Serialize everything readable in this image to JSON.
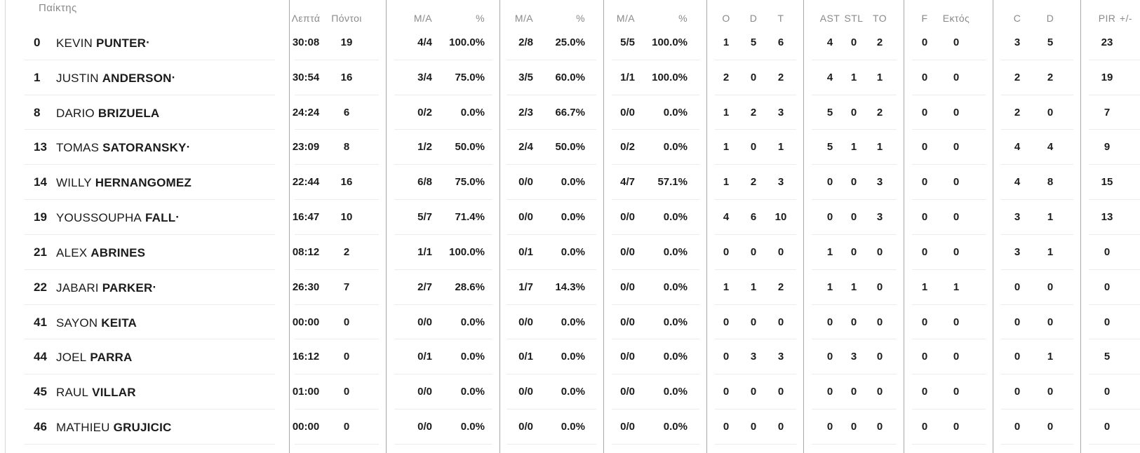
{
  "colors": {
    "header_text": "#8a8a8a",
    "data_text": "#1b1b1b",
    "column_divider": "#a9a9a9",
    "row_separator": "#ececec",
    "background": "#ffffff"
  },
  "table": {
    "starter_marker": "·",
    "headers": {
      "player": "Παίκτης",
      "min": "Λεπτά",
      "pts": "Πόντοι",
      "ma": "M/A",
      "pct": "%",
      "reb_o": "O",
      "reb_d": "D",
      "reb_t": "T",
      "ast": "AST",
      "stl": "STL",
      "to": "TO",
      "f": "F",
      "ektos": "Εκτός",
      "c": "C",
      "d": "D",
      "pir": "PIR",
      "plus_minus": "+/-"
    },
    "rows": [
      {
        "num": "0",
        "first": "KEVIN",
        "last": "PUNTER",
        "starter": true,
        "min": "30:08",
        "pts": "19",
        "fg2_ma": "4/4",
        "fg2_pct": "100.0%",
        "fg3_ma": "2/8",
        "fg3_pct": "25.0%",
        "ft_ma": "5/5",
        "ft_pct": "100.0%",
        "reb_o": "1",
        "reb_d": "5",
        "reb_t": "6",
        "ast": "4",
        "stl": "0",
        "to": "2",
        "f": "0",
        "ektos": "0",
        "c": "3",
        "d": "5",
        "pir": "23"
      },
      {
        "num": "1",
        "first": "JUSTIN",
        "last": "ANDERSON",
        "starter": true,
        "min": "30:54",
        "pts": "16",
        "fg2_ma": "3/4",
        "fg2_pct": "75.0%",
        "fg3_ma": "3/5",
        "fg3_pct": "60.0%",
        "ft_ma": "1/1",
        "ft_pct": "100.0%",
        "reb_o": "2",
        "reb_d": "0",
        "reb_t": "2",
        "ast": "4",
        "stl": "1",
        "to": "1",
        "f": "0",
        "ektos": "0",
        "c": "2",
        "d": "2",
        "pir": "19"
      },
      {
        "num": "8",
        "first": "DARIO",
        "last": "BRIZUELA",
        "starter": false,
        "min": "24:24",
        "pts": "6",
        "fg2_ma": "0/2",
        "fg2_pct": "0.0%",
        "fg3_ma": "2/3",
        "fg3_pct": "66.7%",
        "ft_ma": "0/0",
        "ft_pct": "0.0%",
        "reb_o": "1",
        "reb_d": "2",
        "reb_t": "3",
        "ast": "5",
        "stl": "0",
        "to": "2",
        "f": "0",
        "ektos": "0",
        "c": "2",
        "d": "0",
        "pir": "7"
      },
      {
        "num": "13",
        "first": "TOMAS",
        "last": "SATORANSKY",
        "starter": true,
        "min": "23:09",
        "pts": "8",
        "fg2_ma": "1/2",
        "fg2_pct": "50.0%",
        "fg3_ma": "2/4",
        "fg3_pct": "50.0%",
        "ft_ma": "0/2",
        "ft_pct": "0.0%",
        "reb_o": "1",
        "reb_d": "0",
        "reb_t": "1",
        "ast": "5",
        "stl": "1",
        "to": "1",
        "f": "0",
        "ektos": "0",
        "c": "4",
        "d": "4",
        "pir": "9"
      },
      {
        "num": "14",
        "first": "WILLY",
        "last": "HERNANGOMEZ",
        "starter": false,
        "min": "22:44",
        "pts": "16",
        "fg2_ma": "6/8",
        "fg2_pct": "75.0%",
        "fg3_ma": "0/0",
        "fg3_pct": "0.0%",
        "ft_ma": "4/7",
        "ft_pct": "57.1%",
        "reb_o": "1",
        "reb_d": "2",
        "reb_t": "3",
        "ast": "0",
        "stl": "0",
        "to": "3",
        "f": "0",
        "ektos": "0",
        "c": "4",
        "d": "8",
        "pir": "15"
      },
      {
        "num": "19",
        "first": "YOUSSOUPHA",
        "last": "FALL",
        "starter": true,
        "min": "16:47",
        "pts": "10",
        "fg2_ma": "5/7",
        "fg2_pct": "71.4%",
        "fg3_ma": "0/0",
        "fg3_pct": "0.0%",
        "ft_ma": "0/0",
        "ft_pct": "0.0%",
        "reb_o": "4",
        "reb_d": "6",
        "reb_t": "10",
        "ast": "0",
        "stl": "0",
        "to": "3",
        "f": "0",
        "ektos": "0",
        "c": "3",
        "d": "1",
        "pir": "13"
      },
      {
        "num": "21",
        "first": "ALEX",
        "last": "ABRINES",
        "starter": false,
        "min": "08:12",
        "pts": "2",
        "fg2_ma": "1/1",
        "fg2_pct": "100.0%",
        "fg3_ma": "0/1",
        "fg3_pct": "0.0%",
        "ft_ma": "0/0",
        "ft_pct": "0.0%",
        "reb_o": "0",
        "reb_d": "0",
        "reb_t": "0",
        "ast": "1",
        "stl": "0",
        "to": "0",
        "f": "0",
        "ektos": "0",
        "c": "3",
        "d": "1",
        "pir": "0"
      },
      {
        "num": "22",
        "first": "JABARI",
        "last": "PARKER",
        "starter": true,
        "min": "26:30",
        "pts": "7",
        "fg2_ma": "2/7",
        "fg2_pct": "28.6%",
        "fg3_ma": "1/7",
        "fg3_pct": "14.3%",
        "ft_ma": "0/0",
        "ft_pct": "0.0%",
        "reb_o": "1",
        "reb_d": "1",
        "reb_t": "2",
        "ast": "1",
        "stl": "1",
        "to": "0",
        "f": "1",
        "ektos": "1",
        "c": "0",
        "d": "0",
        "pir": "0"
      },
      {
        "num": "41",
        "first": "SAYON",
        "last": "KEITA",
        "starter": false,
        "min": "00:00",
        "pts": "0",
        "fg2_ma": "0/0",
        "fg2_pct": "0.0%",
        "fg3_ma": "0/0",
        "fg3_pct": "0.0%",
        "ft_ma": "0/0",
        "ft_pct": "0.0%",
        "reb_o": "0",
        "reb_d": "0",
        "reb_t": "0",
        "ast": "0",
        "stl": "0",
        "to": "0",
        "f": "0",
        "ektos": "0",
        "c": "0",
        "d": "0",
        "pir": "0"
      },
      {
        "num": "44",
        "first": "JOEL",
        "last": "PARRA",
        "starter": false,
        "min": "16:12",
        "pts": "0",
        "fg2_ma": "0/1",
        "fg2_pct": "0.0%",
        "fg3_ma": "0/1",
        "fg3_pct": "0.0%",
        "ft_ma": "0/0",
        "ft_pct": "0.0%",
        "reb_o": "0",
        "reb_d": "3",
        "reb_t": "3",
        "ast": "0",
        "stl": "3",
        "to": "0",
        "f": "0",
        "ektos": "0",
        "c": "0",
        "d": "1",
        "pir": "5"
      },
      {
        "num": "45",
        "first": "RAUL",
        "last": "VILLAR",
        "starter": false,
        "min": "01:00",
        "pts": "0",
        "fg2_ma": "0/0",
        "fg2_pct": "0.0%",
        "fg3_ma": "0/0",
        "fg3_pct": "0.0%",
        "ft_ma": "0/0",
        "ft_pct": "0.0%",
        "reb_o": "0",
        "reb_d": "0",
        "reb_t": "0",
        "ast": "0",
        "stl": "0",
        "to": "0",
        "f": "0",
        "ektos": "0",
        "c": "0",
        "d": "0",
        "pir": "0"
      },
      {
        "num": "46",
        "first": "MATHIEU",
        "last": "GRUJICIC",
        "starter": false,
        "min": "00:00",
        "pts": "0",
        "fg2_ma": "0/0",
        "fg2_pct": "0.0%",
        "fg3_ma": "0/0",
        "fg3_pct": "0.0%",
        "ft_ma": "0/0",
        "ft_pct": "0.0%",
        "reb_o": "0",
        "reb_d": "0",
        "reb_t": "0",
        "ast": "0",
        "stl": "0",
        "to": "0",
        "f": "0",
        "ektos": "0",
        "c": "0",
        "d": "0",
        "pir": "0"
      }
    ]
  }
}
